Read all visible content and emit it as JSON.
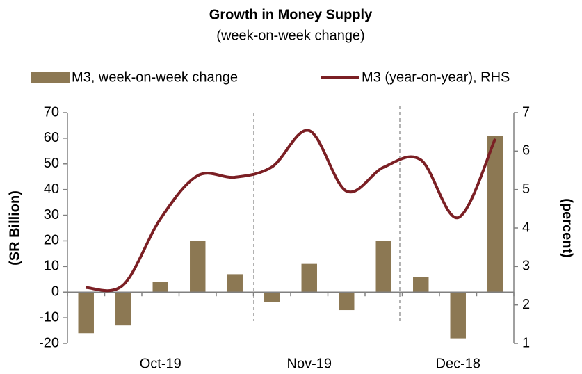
{
  "chart_data": {
    "type": "bar-line",
    "title": "Growth in Money Supply",
    "subtitle": "(week-on-week change)",
    "y_label": "(SR Billion)",
    "y2_label": "(percent)",
    "categories": [
      null,
      null,
      "Oct-19",
      null,
      null,
      null,
      "Nov-19",
      null,
      null,
      null,
      "Dec-18",
      null
    ],
    "series": [
      {
        "name": "M3, week-on-week change",
        "type": "bar",
        "color": "#8c7853",
        "values": [
          -16,
          -13,
          4,
          20,
          7,
          -4,
          11,
          -7,
          20,
          6,
          -18,
          61
        ]
      },
      {
        "name": "M3 (year-on-year), RHS",
        "type": "line",
        "axis": "y2",
        "color": "#7b1f24",
        "values": [
          2.45,
          2.52,
          4.24,
          5.36,
          5.32,
          5.59,
          6.53,
          4.96,
          5.58,
          5.77,
          4.27,
          6.32
        ]
      }
    ],
    "ylim": [
      -20,
      70
    ],
    "yticks": [
      -20,
      -10,
      0,
      10,
      20,
      30,
      40,
      50,
      60,
      70
    ],
    "y2lim": [
      1,
      7
    ],
    "y2ticks": [
      1,
      2,
      3,
      4,
      5,
      6,
      7
    ],
    "legend": "top"
  }
}
